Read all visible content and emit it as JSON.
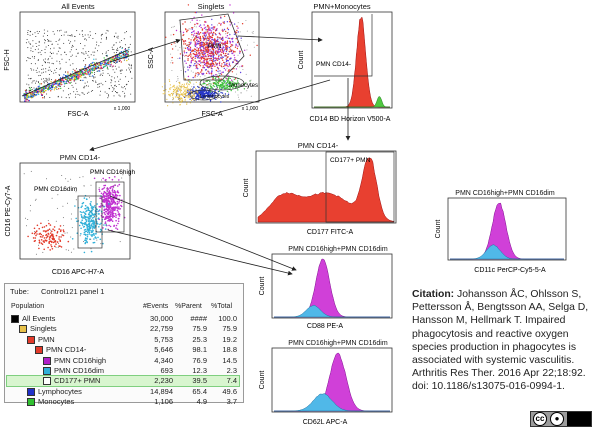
{
  "panels": {
    "all_events": {
      "title": "All Events",
      "ylabel": "FSC-H",
      "xlabel": "FSC-A",
      "tick_x": "x 1,000",
      "tick_y": "x 1,000"
    },
    "singlets": {
      "title": "Singlets",
      "ylabel": "SSC-A",
      "xlabel": "FSC-A",
      "tick_x": "x 1,000",
      "tick_y": "x 1,000",
      "gate_pmn": "PMN",
      "gate_mono": "Monocytes",
      "gate_lympho": "Lymphocytes"
    },
    "pmn_mono": {
      "title": "PMN+Monocytes",
      "ylabel": "Count",
      "xlabel": "CD14 BD Horizon V500-A",
      "gate": "PMN CD14-"
    },
    "pmn_cd14_hist": {
      "title": "PMN CD14-",
      "ylabel": "Count",
      "xlabel": "CD177 FITC-A",
      "gate": "CD177+ PMN"
    },
    "pmn_cd14_dot": {
      "title": "PMN CD14-",
      "ylabel": "CD16 PE-Cy7-A",
      "xlabel": "CD16 APC-H7-A",
      "gate_high": "PMN CD16high",
      "gate_dim": "PMN CD16dim"
    },
    "cd88": {
      "title": "PMN CD16high+PMN CD16dim",
      "ylabel": "Count",
      "xlabel": "CD88 PE-A"
    },
    "cd62l": {
      "title": "PMN CD16high+PMN CD16dim",
      "ylabel": "Count",
      "xlabel": "CD62L APC-A"
    },
    "cd11c": {
      "title": "PMN CD16high+PMN CD16dim",
      "ylabel": "Count",
      "xlabel": "CD11c PerCP-Cy5-5-A"
    }
  },
  "hierarchy": {
    "tube_label": "Tube:",
    "tube_name": "Control121 panel 1",
    "headers": [
      "Population",
      "#Events",
      "%Parent",
      "%Total"
    ],
    "rows": [
      {
        "name": "All Events",
        "events": "30,000",
        "parent": "####",
        "total": "100.0",
        "level": 0,
        "color": "#000000",
        "selected": false
      },
      {
        "name": "Singlets",
        "events": "22,759",
        "parent": "75.9",
        "total": "75.9",
        "level": 1,
        "color": "#e8c24a",
        "selected": false
      },
      {
        "name": "PMN",
        "events": "5,753",
        "parent": "25.3",
        "total": "19.2",
        "level": 2,
        "color": "#e23a2a",
        "selected": false
      },
      {
        "name": "PMN CD14-",
        "events": "5,646",
        "parent": "98.1",
        "total": "18.8",
        "level": 3,
        "color": "#e23a2a",
        "selected": false
      },
      {
        "name": "PMN CD16high",
        "events": "4,340",
        "parent": "76.9",
        "total": "14.5",
        "level": 4,
        "color": "#b020c8",
        "selected": false
      },
      {
        "name": "PMN CD16dim",
        "events": "693",
        "parent": "12.3",
        "total": "2.3",
        "level": 4,
        "color": "#30b0d8",
        "selected": false
      },
      {
        "name": "CD177+ PMN",
        "events": "2,230",
        "parent": "39.5",
        "total": "7.4",
        "level": 4,
        "color": "#ffffff",
        "selected": true
      },
      {
        "name": "Lymphocytes",
        "events": "14,894",
        "parent": "65.4",
        "total": "49.6",
        "level": 2,
        "color": "#2030c8",
        "selected": false
      },
      {
        "name": "Monocytes",
        "events": "1,106",
        "parent": "4.9",
        "total": "3.7",
        "level": 2,
        "color": "#30c030",
        "selected": false
      }
    ]
  },
  "citation": {
    "label": "Citation:",
    "text": "Johansson ÅC, Ohlsson S, Pettersson Å, Bengtsson AA, Selga D, Hansson M, Hellmark T. Impaired phagocytosis and reactive oxygen species production in phagocytes is associated with systemic vasculitis. Arthritis Res Ther. 2016 Apr 22;18:92. doi: 10.1186/s13075-016-0994-1.",
    "license": "cc"
  },
  "colors": {
    "red": "#e23a2a",
    "magenta": "#d03ad8",
    "cyan": "#40b8e0",
    "green": "#40c040",
    "blue": "#2838c8"
  }
}
